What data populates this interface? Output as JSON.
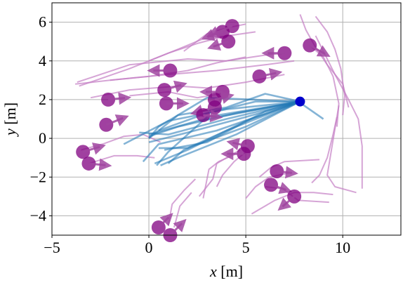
{
  "chart_data": {
    "type": "scatter",
    "xlabel": "x [m]",
    "ylabel": "y [m]",
    "xlim": [
      -5,
      13
    ],
    "ylim": [
      -5,
      7
    ],
    "xticks": [
      -5,
      0,
      5,
      10
    ],
    "xtick_labels": [
      "−5",
      "0",
      "5",
      "10"
    ],
    "yticks": [
      -4,
      -2,
      0,
      2,
      4,
      6
    ],
    "ytick_labels": [
      "−4",
      "−2",
      "0",
      "2",
      "4",
      "6"
    ],
    "grid": true,
    "colors": {
      "robot": "#0000cc",
      "robot_trajectory": "#1f77b4",
      "pedestrian": "#800080",
      "pedestrian_trajectory": "#c57fc5"
    },
    "robot_position": {
      "x": 7.8,
      "y": 1.9
    },
    "robot_trajectories": [
      [
        [
          7.8,
          1.9
        ],
        [
          4.5,
          1.3
        ],
        [
          1.5,
          0.6
        ],
        [
          0,
          0.1
        ]
      ],
      [
        [
          7.8,
          1.9
        ],
        [
          5,
          1.1
        ],
        [
          2,
          0.3
        ],
        [
          0,
          -0.2
        ]
      ],
      [
        [
          7.8,
          1.9
        ],
        [
          4,
          1.0
        ],
        [
          1,
          0.2
        ],
        [
          -0.5,
          0.3
        ]
      ],
      [
        [
          7.8,
          1.9
        ],
        [
          3.5,
          0.4
        ],
        [
          0.5,
          -0.3
        ],
        [
          -0.3,
          -1.2
        ]
      ],
      [
        [
          7.8,
          1.9
        ],
        [
          5,
          0.9
        ],
        [
          2,
          -0.6
        ],
        [
          0.3,
          -1.3
        ]
      ],
      [
        [
          7.8,
          1.9
        ],
        [
          4,
          1.5
        ],
        [
          1,
          0.9
        ],
        [
          -1.3,
          -0.3
        ]
      ],
      [
        [
          7.8,
          1.9
        ],
        [
          3,
          2.1
        ],
        [
          0.5,
          0.6
        ],
        [
          0,
          0
        ]
      ],
      [
        [
          7.8,
          1.9
        ],
        [
          6,
          1.4
        ],
        [
          3,
          -0.2
        ],
        [
          0.8,
          -0.6
        ]
      ],
      [
        [
          7.8,
          1.9
        ],
        [
          5,
          0.6
        ],
        [
          2,
          -0.5
        ],
        [
          0.5,
          -0.5
        ]
      ],
      [
        [
          7.8,
          1.9
        ],
        [
          2.5,
          0.9
        ],
        [
          0,
          0.2
        ]
      ],
      [
        [
          7.8,
          1.9
        ],
        [
          3,
          1.1
        ],
        [
          1,
          -0.7
        ],
        [
          0.4,
          -1.4
        ]
      ],
      [
        [
          7.8,
          1.9
        ],
        [
          4.5,
          0.2
        ],
        [
          1.5,
          -1
        ],
        [
          0.6,
          -1.4
        ]
      ],
      [
        [
          7.8,
          1.9
        ],
        [
          6,
          2.3
        ],
        [
          4,
          1.6
        ],
        [
          1.5,
          1.2
        ],
        [
          0,
          0
        ]
      ],
      [
        [
          7.8,
          1.9
        ],
        [
          5.5,
          1.9
        ],
        [
          3,
          1.3
        ],
        [
          0.5,
          0.4
        ]
      ],
      [
        [
          7.8,
          1.9
        ],
        [
          4,
          0.4
        ],
        [
          1.8,
          -0.6
        ],
        [
          1,
          -1.3
        ]
      ],
      [
        [
          7.8,
          1.9
        ],
        [
          8,
          1.7
        ],
        [
          9,
          1.0
        ]
      ]
    ],
    "pedestrian_trajectories": [
      [
        [
          -3.8,
          2.8
        ],
        [
          -2,
          3.0
        ],
        [
          1,
          3.3
        ],
        [
          3.5,
          3.5
        ],
        [
          6,
          3.8
        ],
        [
          7.5,
          4.0
        ]
      ],
      [
        [
          -3.6,
          2.7
        ],
        [
          -1,
          3.6
        ],
        [
          1,
          4.4
        ],
        [
          2.5,
          4.9
        ],
        [
          4,
          5.3
        ]
      ],
      [
        [
          -3.7,
          2.9
        ],
        [
          -1,
          3.8
        ],
        [
          2,
          4.1
        ],
        [
          4,
          4.0
        ],
        [
          6,
          4.3
        ],
        [
          7,
          4.4
        ]
      ],
      [
        [
          -3,
          2.1
        ],
        [
          -1,
          2.5
        ],
        [
          1.5,
          2.7
        ],
        [
          3,
          2.6
        ],
        [
          5,
          2.9
        ],
        [
          7,
          3.3
        ]
      ],
      [
        [
          -2,
          3.0
        ],
        [
          0,
          3.2
        ],
        [
          2,
          3.5
        ],
        [
          3.5,
          3.9
        ],
        [
          5,
          4.2
        ]
      ],
      [
        [
          -1,
          2.2
        ],
        [
          1,
          2.4
        ],
        [
          2.5,
          2.1
        ],
        [
          3.7,
          2.3
        ]
      ],
      [
        [
          0,
          4.0
        ],
        [
          1.5,
          4.6
        ],
        [
          2.7,
          5.1
        ],
        [
          4.1,
          5.3
        ],
        [
          5.5,
          5.5
        ]
      ],
      [
        [
          1.8,
          4.5
        ],
        [
          3,
          5.4
        ],
        [
          4,
          5.7
        ],
        [
          5,
          5.9
        ]
      ],
      [
        [
          7.8,
          6.4
        ],
        [
          8.1,
          5.6
        ],
        [
          8.6,
          4.7
        ],
        [
          9.2,
          3.8
        ],
        [
          10,
          2.8
        ],
        [
          10.3,
          1.6
        ]
      ],
      [
        [
          8.6,
          6.3
        ],
        [
          9.2,
          5.5
        ],
        [
          9.6,
          4.6
        ],
        [
          9.9,
          3.6
        ],
        [
          10.1,
          2.2
        ],
        [
          10,
          1.2
        ]
      ],
      [
        [
          8.3,
          4.8
        ],
        [
          9,
          4.2
        ],
        [
          9.5,
          3.2
        ],
        [
          9.8,
          1.8
        ],
        [
          9.7,
          0.6
        ]
      ],
      [
        [
          8.6,
          5.3
        ],
        [
          9,
          4.5
        ],
        [
          9.6,
          3.3
        ],
        [
          10.3,
          2.0
        ],
        [
          10.8,
          1.0
        ],
        [
          11,
          -0.4
        ],
        [
          11,
          -1.6
        ],
        [
          11,
          -2.6
        ]
      ],
      [
        [
          9.8,
          1.7
        ],
        [
          9.6,
          0.5
        ],
        [
          9.4,
          -0.7
        ],
        [
          9.2,
          -1.9
        ],
        [
          9.6,
          -2.5
        ],
        [
          10.7,
          -2.8
        ]
      ],
      [
        [
          9.7,
          1.1
        ],
        [
          9.5,
          0.2
        ],
        [
          9.2,
          -1.0
        ],
        [
          8.8,
          -1.9
        ],
        [
          8.4,
          -2.3
        ]
      ],
      [
        [
          5.3,
          -3.9
        ],
        [
          6.5,
          -3.2
        ],
        [
          7.5,
          -2.8
        ],
        [
          8.5,
          -2.8
        ],
        [
          9.5,
          -2.9
        ]
      ],
      [
        [
          5,
          -3.1
        ],
        [
          5.5,
          -2.5
        ],
        [
          6.2,
          -2.0
        ],
        [
          7.2,
          -1.8
        ]
      ],
      [
        [
          6,
          -2.5
        ],
        [
          6.9,
          -2.6
        ],
        [
          7.7,
          -3.2
        ],
        [
          9.3,
          -3.3
        ]
      ],
      [
        [
          5.7,
          -2.0
        ],
        [
          6.3,
          -1.5
        ],
        [
          7,
          -1.2
        ],
        [
          8.8,
          -1.1
        ]
      ],
      [
        [
          2.8,
          -3.1
        ],
        [
          3.1,
          -1.6
        ],
        [
          3.6,
          -1.2
        ],
        [
          4.5,
          -0.8
        ]
      ],
      [
        [
          3.5,
          -2.5
        ],
        [
          3.8,
          -1.9
        ],
        [
          4.4,
          -1.2
        ],
        [
          5,
          -0.7
        ]
      ],
      [
        [
          2.6,
          -3.0
        ],
        [
          3.3,
          -2.1
        ],
        [
          3.5,
          -1.3
        ],
        [
          4.7,
          -0.6
        ]
      ],
      [
        [
          -3.5,
          -0.6
        ],
        [
          -2.4,
          -0.3
        ],
        [
          -1.3,
          0.1
        ],
        [
          -0.3,
          0.2
        ],
        [
          0.6,
          -0.2
        ]
      ],
      [
        [
          -3.1,
          -1.3
        ],
        [
          -1.8,
          -0.9
        ],
        [
          -0.6,
          -0.9
        ],
        [
          0.3,
          -1.0
        ]
      ],
      [
        [
          1.0,
          -4.5
        ],
        [
          1.2,
          -3.4
        ],
        [
          1.8,
          -2.7
        ],
        [
          2.4,
          -2.1
        ]
      ],
      [
        [
          1.3,
          -4.6
        ],
        [
          1.6,
          -3.5
        ],
        [
          2.2,
          -2.8
        ]
      ]
    ],
    "pedestrians": [
      {
        "x": 3.8,
        "y": 5.5,
        "dx": -0.9,
        "dy": -0.3
      },
      {
        "x": 4.3,
        "y": 5.8,
        "dx": -1.2,
        "dy": -0.5
      },
      {
        "x": 4.1,
        "y": 5.0,
        "dx": -0.9,
        "dy": -0.3
      },
      {
        "x": 7,
        "y": 4.4,
        "dx": -1.0,
        "dy": 0
      },
      {
        "x": 8.3,
        "y": 4.8,
        "dx": 0.9,
        "dy": -0.5
      },
      {
        "x": 1.1,
        "y": 3.5,
        "dx": -1.0,
        "dy": 0
      },
      {
        "x": 5.7,
        "y": 3.2,
        "dx": 1.0,
        "dy": 0.2
      },
      {
        "x": 0.8,
        "y": 2.5,
        "dx": 1.0,
        "dy": 0.3
      },
      {
        "x": 3.8,
        "y": 2.4,
        "dx": -1.0,
        "dy": 0
      },
      {
        "x": 3.4,
        "y": 2.0,
        "dx": 0.8,
        "dy": 0.2
      },
      {
        "x": -2.1,
        "y": 2.0,
        "dx": 1.0,
        "dy": 0.1
      },
      {
        "x": 0.9,
        "y": 1.8,
        "dx": 1.0,
        "dy": 0
      },
      {
        "x": 3.4,
        "y": 1.6,
        "dx": -1.1,
        "dy": -0.3
      },
      {
        "x": 2.8,
        "y": 1.2,
        "dx": 0.8,
        "dy": -0.1
      },
      {
        "x": -2.2,
        "y": 0.7,
        "dx": 1.0,
        "dy": 0.4
      },
      {
        "x": 5.1,
        "y": -0.4,
        "dx": -0.9,
        "dy": 0.2
      },
      {
        "x": 4.9,
        "y": -0.8,
        "dx": -1.0,
        "dy": 0
      },
      {
        "x": -3.4,
        "y": -0.7,
        "dx": 1.0,
        "dy": 0.3
      },
      {
        "x": -3.1,
        "y": -1.3,
        "dx": 1.0,
        "dy": -0.1
      },
      {
        "x": 6.6,
        "y": -1.7,
        "dx": 0.9,
        "dy": -0.1
      },
      {
        "x": 6.3,
        "y": -2.4,
        "dx": 0.9,
        "dy": -0.3
      },
      {
        "x": 7.5,
        "y": -3.0,
        "dx": -0.7,
        "dy": -0.6
      },
      {
        "x": 0.5,
        "y": -4.6,
        "dx": 0.6,
        "dy": 0.6
      },
      {
        "x": 1.1,
        "y": -5.0,
        "dx": 0.7,
        "dy": 0.7
      }
    ]
  }
}
